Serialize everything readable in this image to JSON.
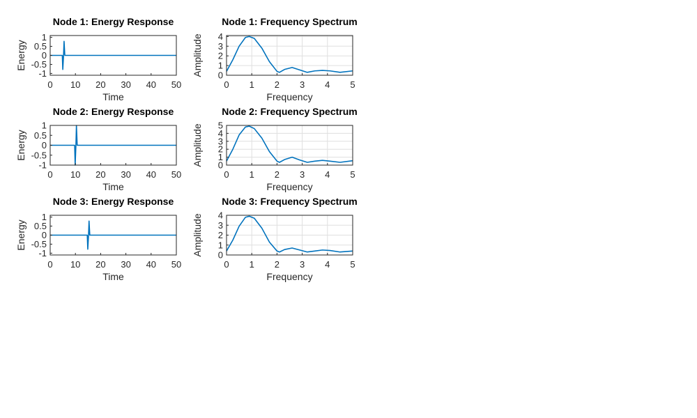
{
  "chart_data": [
    {
      "type": "line",
      "title": "Node 1: Energy Response",
      "xlabel": "Time",
      "ylabel": "Energy",
      "xlim": [
        0,
        50
      ],
      "ylim": [
        -1.1,
        1.1
      ],
      "xticks": [
        "0",
        "10",
        "20",
        "30",
        "40",
        "50"
      ],
      "yticks": [
        "1",
        "0.5",
        "0",
        "-0.5",
        "-1"
      ],
      "xtick_values": [
        0,
        10,
        20,
        30,
        40,
        50
      ],
      "ytick_values": [
        1,
        0.5,
        0,
        -0.5,
        -1
      ],
      "grid": false,
      "color": "#0072bd",
      "series": [
        {
          "x": [
            0,
            4.8,
            5.0,
            5.3,
            5.5,
            5.8,
            50
          ],
          "y": [
            0,
            0,
            -0.78,
            0,
            0.78,
            0,
            0
          ]
        }
      ]
    },
    {
      "type": "line",
      "title": "Node 1: Frequency Spectrum",
      "xlabel": "Frequency",
      "ylabel": "Amplitude",
      "xlim": [
        0,
        5
      ],
      "ylim": [
        0,
        4.1
      ],
      "xticks": [
        "0",
        "1",
        "2",
        "3",
        "4",
        "5"
      ],
      "yticks": [
        "4",
        "3",
        "2",
        "1",
        "0"
      ],
      "xtick_values": [
        0,
        1,
        2,
        3,
        4,
        5
      ],
      "ytick_values": [
        4,
        3,
        2,
        1,
        0
      ],
      "grid": true,
      "color": "#0072bd",
      "series": [
        {
          "x": [
            0,
            0.25,
            0.5,
            0.75,
            0.9,
            1.1,
            1.4,
            1.7,
            2.0,
            2.1,
            2.3,
            2.6,
            2.9,
            3.2,
            3.5,
            3.8,
            4.1,
            4.5,
            5.0
          ],
          "y": [
            0.4,
            1.6,
            3.0,
            3.9,
            4.0,
            3.8,
            2.8,
            1.4,
            0.4,
            0.3,
            0.6,
            0.8,
            0.55,
            0.3,
            0.45,
            0.5,
            0.45,
            0.3,
            0.45
          ]
        }
      ]
    },
    {
      "type": "line",
      "title": "Node 2: Energy Response",
      "xlabel": "Time",
      "ylabel": "Energy",
      "xlim": [
        0,
        50
      ],
      "ylim": [
        -1,
        1
      ],
      "xticks": [
        "0",
        "10",
        "20",
        "30",
        "40",
        "50"
      ],
      "yticks": [
        "1",
        "0.5",
        "0",
        "-0.5",
        "-1"
      ],
      "xtick_values": [
        0,
        10,
        20,
        30,
        40,
        50
      ],
      "ytick_values": [
        1,
        0.5,
        0,
        -0.5,
        -1
      ],
      "grid": false,
      "color": "#0072bd",
      "series": [
        {
          "x": [
            0,
            9.7,
            9.9,
            10.2,
            10.4,
            10.7,
            50
          ],
          "y": [
            0,
            0,
            -1,
            0,
            1,
            0,
            0
          ]
        }
      ]
    },
    {
      "type": "line",
      "title": "Node 2: Frequency Spectrum",
      "xlabel": "Frequency",
      "ylabel": "Amplitude",
      "xlim": [
        0,
        5
      ],
      "ylim": [
        0,
        5
      ],
      "xticks": [
        "0",
        "1",
        "2",
        "3",
        "4",
        "5"
      ],
      "yticks": [
        "5",
        "4",
        "3",
        "2",
        "1",
        "0"
      ],
      "xtick_values": [
        0,
        1,
        2,
        3,
        4,
        5
      ],
      "ytick_values": [
        5,
        4,
        3,
        2,
        1,
        0
      ],
      "grid": true,
      "color": "#0072bd",
      "series": [
        {
          "x": [
            0,
            0.25,
            0.5,
            0.75,
            0.9,
            1.1,
            1.4,
            1.7,
            2.0,
            2.1,
            2.3,
            2.6,
            2.9,
            3.2,
            3.5,
            3.8,
            4.1,
            4.5,
            5.0
          ],
          "y": [
            0.5,
            2.0,
            3.8,
            4.8,
            4.9,
            4.6,
            3.4,
            1.7,
            0.5,
            0.35,
            0.7,
            1.0,
            0.65,
            0.35,
            0.5,
            0.6,
            0.5,
            0.35,
            0.55
          ]
        }
      ]
    },
    {
      "type": "line",
      "title": "Node 3: Energy Response",
      "xlabel": "Time",
      "ylabel": "Energy",
      "xlim": [
        0,
        50
      ],
      "ylim": [
        -1.1,
        1.1
      ],
      "xticks": [
        "0",
        "10",
        "20",
        "30",
        "40",
        "50"
      ],
      "yticks": [
        "1",
        "0.5",
        "0",
        "-0.5",
        "-1"
      ],
      "xtick_values": [
        0,
        10,
        20,
        30,
        40,
        50
      ],
      "ytick_values": [
        1,
        0.5,
        0,
        -0.5,
        -1
      ],
      "grid": false,
      "color": "#0072bd",
      "series": [
        {
          "x": [
            0,
            14.7,
            14.9,
            15.2,
            15.4,
            15.7,
            50
          ],
          "y": [
            0,
            0,
            -0.78,
            0,
            0.78,
            0,
            0
          ]
        }
      ]
    },
    {
      "type": "line",
      "title": "Node 3: Frequency Spectrum",
      "xlabel": "Frequency",
      "ylabel": "Amplitude",
      "xlim": [
        0,
        5
      ],
      "ylim": [
        0,
        4
      ],
      "xticks": [
        "0",
        "1",
        "2",
        "3",
        "4",
        "5"
      ],
      "yticks": [
        "4",
        "3",
        "2",
        "1",
        "0"
      ],
      "xtick_values": [
        0,
        1,
        2,
        3,
        4,
        5
      ],
      "ytick_values": [
        4,
        3,
        2,
        1,
        0
      ],
      "grid": true,
      "color": "#0072bd",
      "series": [
        {
          "x": [
            0,
            0.25,
            0.5,
            0.75,
            0.9,
            1.1,
            1.4,
            1.7,
            2.0,
            2.1,
            2.3,
            2.6,
            2.9,
            3.2,
            3.5,
            3.8,
            4.1,
            4.5,
            5.0
          ],
          "y": [
            0.4,
            1.5,
            2.9,
            3.8,
            3.9,
            3.7,
            2.7,
            1.3,
            0.4,
            0.3,
            0.55,
            0.7,
            0.5,
            0.3,
            0.4,
            0.5,
            0.45,
            0.3,
            0.4
          ]
        }
      ]
    }
  ]
}
